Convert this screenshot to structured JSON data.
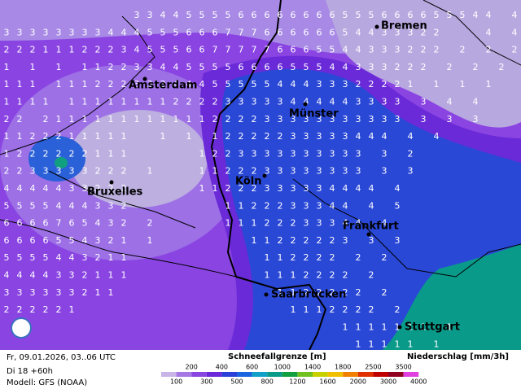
{
  "precip_grid": [
    "          3344555566666666555666655544 4",
    "3333333344455566677766666654433322   4 4",
    "2221112223455566777776665544333222 2 2 2",
    "1 1 1 112233445555666655544333222 2 2 2",
    "111 1112223334445555544433322221 1 1 1",
    "1111 11111111222233333444443333 3 4 4",
    "22 2111111111111222233333333333 3 3 3",
    "1122211111  1 1 12222233333444 4 4",
    "1222222111     1223333333333 3 2",
    "2233333222 1   1122233333333 3 3",
    "4444433222     11222333334444 4",
    "5555444332       1122233344 4 5",
    "6666765432 2     11122233344 4",
    "6666554321 1       11222223 3 3",
    "5555443211          112222 2 2",
    "4444332111          1112222 2",
    "333333211            1122222 2",
    "222221                1112222 2",
    "                          1111111 1",
    "                           11111 1"
  ],
  "cities": [
    "Bremen",
    "Amsterdam",
    "Münster",
    "Bruxelles",
    "Köln",
    "Frankfurt",
    "Saarbrücken",
    "Stuttgart"
  ],
  "footer": {
    "valid_time": "Fr, 09.01.2026, 03..06 UTC",
    "run": "Di 18 +60h",
    "model": "Modell: GFS (NOAA)",
    "snow_level_label": "Schneefallgrenze [m]",
    "precip_label": "Niederschlag [mm/3h]",
    "scale": {
      "upper_labels": [
        200,
        400,
        600,
        1000,
        1400,
        1800,
        2500,
        3500
      ],
      "lower_labels": [
        100,
        300,
        500,
        800,
        1200,
        1600,
        2000,
        3000,
        4000
      ],
      "colors": [
        "#c8b4e6",
        "#a678e6",
        "#8a46e0",
        "#6a28d8",
        "#2a40d8",
        "#1a64e0",
        "#10a0c8",
        "#0a9a8a",
        "#10a040",
        "#70c020",
        "#c8d000",
        "#f0c000",
        "#f08000",
        "#e03000",
        "#c00000",
        "#900020",
        "#e040e0"
      ]
    }
  }
}
